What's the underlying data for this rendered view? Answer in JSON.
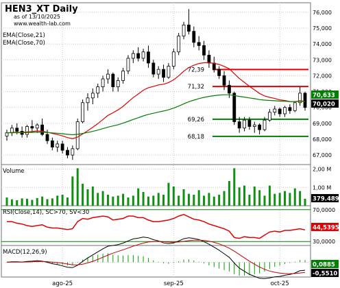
{
  "header": {
    "title": "HEN3_XT Daily",
    "subtitle": "as of 13/10/2025",
    "site": "www.wealth-lab.com"
  },
  "colors": {
    "background": "#ffffff",
    "frame": "#707070",
    "grid": "#c8c8c8",
    "bull_candle": "#ffffff",
    "bear_candle": "#000000",
    "ema21": "#e00000",
    "ema70": "#008000",
    "level_red": "#e00000",
    "level_green": "#008000",
    "volume_bar": "#109010",
    "rsi_line": "#e00000",
    "rsi_band": "#008000",
    "macd_line": "#000000",
    "macd_signal": "#c00000",
    "macd_hist": "#00a000",
    "price_badge_1": "#008000",
    "price_badge_2": "#000000",
    "volume_badge": "#000000",
    "rsi_badge": "#e00000",
    "macd_badge_1": "#008000",
    "macd_badge_2": "#000000"
  },
  "chart_data": [
    {
      "type": "candlestick",
      "panel": "price",
      "legend": [
        "EMA(Close,21)",
        "EMA(Close,70)"
      ],
      "ylim": [
        66.4,
        76.6
      ],
      "y_ticks": [
        67,
        68,
        69,
        70,
        71,
        72,
        73,
        74,
        75,
        76
      ],
      "y_tick_labels": [
        "67,000",
        "68,000",
        "69,000",
        "70,000",
        "71,000",
        "72,000",
        "73,000",
        "74,000",
        "75,000",
        "76,000"
      ],
      "x_labels": [
        "ago-25",
        "sep-25",
        "oct-25"
      ],
      "x_label_bar_index": [
        11,
        33,
        54
      ],
      "last_values": [
        "70,633",
        "70,020"
      ],
      "ohlc": [
        [
          68.2,
          68.6,
          67.9,
          68.4
        ],
        [
          68.4,
          68.9,
          68.2,
          68.7
        ],
        [
          68.7,
          69.0,
          68.3,
          68.5
        ],
        [
          68.5,
          68.8,
          68.1,
          68.3
        ],
        [
          68.3,
          68.9,
          68.1,
          68.8
        ],
        [
          68.8,
          69.2,
          68.5,
          68.7
        ],
        [
          68.7,
          69.0,
          68.4,
          68.9
        ],
        [
          68.9,
          69.3,
          68.2,
          68.3
        ],
        [
          68.3,
          68.6,
          67.7,
          67.9
        ],
        [
          67.9,
          68.1,
          67.3,
          67.5
        ],
        [
          67.5,
          67.9,
          67.2,
          67.7
        ],
        [
          67.7,
          67.9,
          67.1,
          67.3
        ],
        [
          67.3,
          67.5,
          66.8,
          67.0
        ],
        [
          67.0,
          67.6,
          66.7,
          67.4
        ],
        [
          67.4,
          69.3,
          67.3,
          69.1
        ],
        [
          69.1,
          70.5,
          69.0,
          70.3
        ],
        [
          70.3,
          70.9,
          69.8,
          70.6
        ],
        [
          70.6,
          71.2,
          70.2,
          70.9
        ],
        [
          70.9,
          71.5,
          70.6,
          71.3
        ],
        [
          71.3,
          72.0,
          71.0,
          71.8
        ],
        [
          71.8,
          72.4,
          71.5,
          72.1
        ],
        [
          72.1,
          72.2,
          71.0,
          71.3
        ],
        [
          71.3,
          71.9,
          71.0,
          71.7
        ],
        [
          71.7,
          72.5,
          71.5,
          72.3
        ],
        [
          72.3,
          73.3,
          72.1,
          73.1
        ],
        [
          73.1,
          73.6,
          72.8,
          73.4
        ],
        [
          73.4,
          73.8,
          72.9,
          73.1
        ],
        [
          73.1,
          73.7,
          72.9,
          73.5
        ],
        [
          73.5,
          73.9,
          72.5,
          72.8
        ],
        [
          72.8,
          73.0,
          71.9,
          72.1
        ],
        [
          72.1,
          72.6,
          71.8,
          72.4
        ],
        [
          72.4,
          72.7,
          71.6,
          71.9
        ],
        [
          71.9,
          72.8,
          71.8,
          72.6
        ],
        [
          72.6,
          73.7,
          72.4,
          73.5
        ],
        [
          73.5,
          74.7,
          73.3,
          74.5
        ],
        [
          74.5,
          75.4,
          74.3,
          75.2
        ],
        [
          75.2,
          76.2,
          74.6,
          74.8
        ],
        [
          74.8,
          75.1,
          73.8,
          74.1
        ],
        [
          74.1,
          74.5,
          73.6,
          73.9
        ],
        [
          73.9,
          74.2,
          73.0,
          73.3
        ],
        [
          73.3,
          73.6,
          72.5,
          72.8
        ],
        [
          72.8,
          73.2,
          72.2,
          72.4
        ],
        [
          72.4,
          72.6,
          71.8,
          72.0
        ],
        [
          72.0,
          72.3,
          71.1,
          71.4
        ],
        [
          71.4,
          71.7,
          70.6,
          70.9
        ],
        [
          70.9,
          71.0,
          68.9,
          69.1
        ],
        [
          69.1,
          69.4,
          68.4,
          68.7
        ],
        [
          68.7,
          69.4,
          68.5,
          69.2
        ],
        [
          69.2,
          69.4,
          68.6,
          68.8
        ],
        [
          68.8,
          69.1,
          68.4,
          68.9
        ],
        [
          68.9,
          69.0,
          68.3,
          68.6
        ],
        [
          68.6,
          69.4,
          68.5,
          69.2
        ],
        [
          69.2,
          69.9,
          69.1,
          69.7
        ],
        [
          69.7,
          70.1,
          69.5,
          69.9
        ],
        [
          69.9,
          70.0,
          69.4,
          69.6
        ],
        [
          69.6,
          70.1,
          69.4,
          70.0
        ],
        [
          70.0,
          70.2,
          69.6,
          69.8
        ],
        [
          69.8,
          70.4,
          69.7,
          70.3
        ],
        [
          70.3,
          71.3,
          70.1,
          70.9
        ],
        [
          70.9,
          71.0,
          69.8,
          70.0
        ]
      ],
      "levels": [
        {
          "value": 72.39,
          "label": "72,39",
          "color": "red"
        },
        {
          "value": 71.32,
          "label": "71,32",
          "color": "red"
        },
        {
          "value": 69.26,
          "label": "69,26",
          "color": "green"
        },
        {
          "value": 68.18,
          "label": "68,18",
          "color": "green"
        }
      ]
    },
    {
      "type": "bar",
      "panel": "volume",
      "title": "Volume",
      "ylim": [
        0,
        2.25
      ],
      "y_tick_labels": [
        "2,00 M",
        "1,00 M"
      ],
      "y_ticks": [
        2.0,
        1.0
      ],
      "last_value": "379.489",
      "values_millions": [
        0.45,
        0.35,
        0.3,
        0.4,
        0.38,
        0.32,
        0.42,
        0.5,
        0.36,
        0.4,
        0.55,
        0.6,
        0.45,
        1.6,
        2.05,
        1.2,
        0.9,
        1.05,
        0.7,
        0.8,
        0.6,
        0.5,
        0.55,
        0.65,
        0.45,
        0.55,
        0.95,
        0.75,
        0.5,
        0.55,
        0.7,
        0.6,
        1.25,
        1.05,
        0.55,
        0.9,
        0.65,
        0.6,
        0.85,
        0.55,
        0.7,
        0.5,
        0.6,
        0.8,
        1.35,
        2.05,
        1.0,
        1.1,
        0.6,
        1.05,
        0.85,
        0.55,
        1.1,
        0.65,
        0.7,
        0.8,
        0.7,
        0.95,
        0.8,
        0.38
      ]
    },
    {
      "type": "line",
      "panel": "rsi",
      "title": "RSI(Close,14), SC>70, SV<30",
      "ylim": [
        25,
        75
      ],
      "y_ticks": [
        70,
        30
      ],
      "y_tick_labels": [
        "70,0000",
        "30,0000"
      ],
      "last_value": "44,5395",
      "values": [
        55,
        55,
        53,
        52,
        50,
        49,
        50,
        51,
        48,
        47,
        47,
        46,
        45,
        46,
        55,
        59,
        58,
        60,
        61,
        62,
        61,
        57,
        58,
        59,
        62,
        62,
        60,
        60,
        57,
        55,
        55,
        56,
        57,
        59,
        62,
        64,
        61,
        58,
        57,
        55,
        52,
        50,
        48,
        46,
        43,
        35,
        34,
        36,
        35,
        35,
        34,
        38,
        42,
        43,
        42,
        44,
        44,
        45,
        46,
        44.54
      ]
    },
    {
      "type": "line",
      "panel": "macd",
      "title": "MACD(12,26,9)",
      "ylim": [
        -0.75,
        0.85
      ],
      "last_values": [
        "0,0885",
        "-0,5510"
      ]
    }
  ]
}
